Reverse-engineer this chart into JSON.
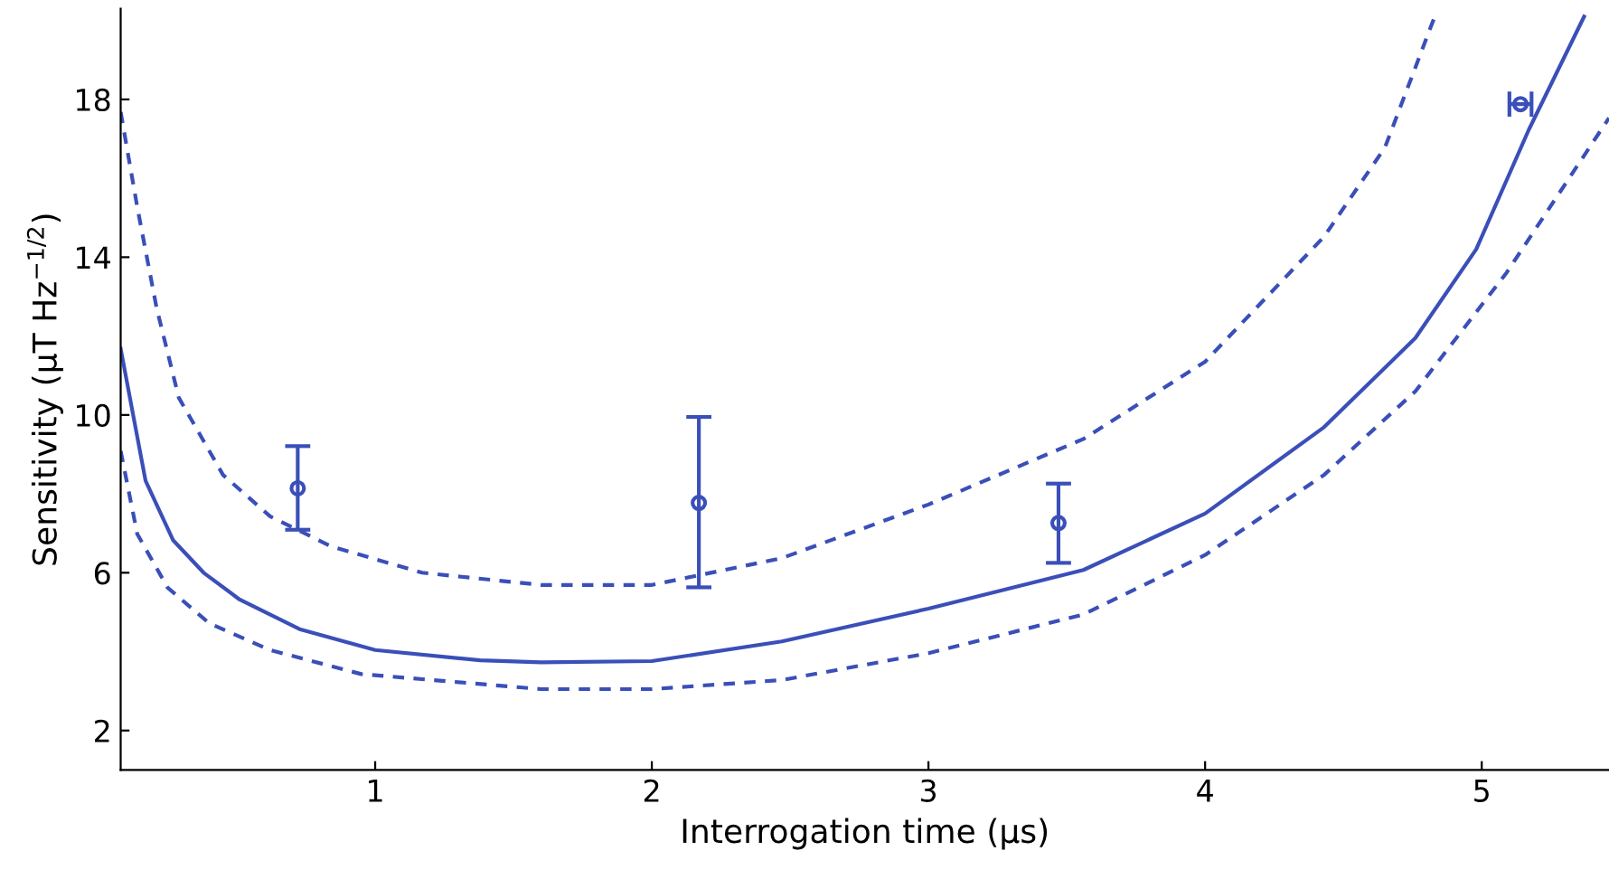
{
  "chart_data": {
    "type": "line",
    "xlabel": "Interrogation time (µs)",
    "ylabel": "Sensitivity (µT Hz$^{−1/2}$)",
    "xlim": [
      0.08,
      5.46
    ],
    "ylim": [
      1,
      20.3
    ],
    "xticks": [
      1,
      2,
      3,
      4,
      5
    ],
    "yticks": [
      2,
      6,
      10,
      14,
      18
    ],
    "grid": false,
    "legend": false,
    "series": [
      {
        "color": "#3a4fb8",
        "line_style": "solid",
        "x": [
          0.08,
          0.17,
          0.27,
          0.38,
          0.51,
          0.73,
          1.0,
          1.38,
          1.6,
          2.0,
          2.47,
          3.0,
          3.56,
          4.0,
          4.43,
          4.76,
          4.98,
          5.17,
          5.37
        ],
        "values": [
          11.68,
          8.33,
          6.82,
          6.0,
          5.32,
          4.56,
          4.04,
          3.78,
          3.73,
          3.76,
          4.26,
          5.09,
          6.07,
          7.5,
          9.69,
          11.95,
          14.2,
          17.23,
          20.1
        ]
      },
      {
        "color": "#3a4fb8",
        "line_style": "dashed",
        "x": [
          0.08,
          0.14,
          0.21,
          0.29,
          0.45,
          0.62,
          0.84,
          1.17,
          1.6,
          2.0,
          2.47,
          3.0,
          3.56,
          4.0,
          4.43,
          4.65,
          4.83
        ],
        "values": [
          17.68,
          15.27,
          12.71,
          10.44,
          8.48,
          7.43,
          6.67,
          6.0,
          5.69,
          5.69,
          6.37,
          7.73,
          9.39,
          11.35,
          14.52,
          16.78,
          20.1
        ]
      },
      {
        "color": "#3a4fb8",
        "line_style": "dashed",
        "x": [
          0.08,
          0.14,
          0.25,
          0.4,
          0.62,
          0.95,
          1.6,
          2.0,
          2.47,
          3.0,
          3.56,
          4.0,
          4.43,
          4.76,
          5.09,
          5.46
        ],
        "values": [
          9.09,
          6.98,
          5.62,
          4.72,
          4.04,
          3.43,
          3.05,
          3.05,
          3.28,
          3.96,
          4.94,
          6.45,
          8.48,
          10.6,
          13.61,
          17.53
        ]
      },
      {
        "type": "scatter",
        "color": "#3a4fb8",
        "marker": "circle",
        "x": [
          0.72,
          2.17,
          3.47,
          5.14
        ],
        "values": [
          8.14,
          7.77,
          7.26,
          17.88
        ],
        "errors": [
          [
            7.09,
            9.21
          ],
          [
            5.63,
            9.95
          ],
          [
            6.25,
            8.26
          ],
          null
        ],
        "xerrors": [
          null,
          null,
          null,
          0.04
        ]
      }
    ]
  }
}
